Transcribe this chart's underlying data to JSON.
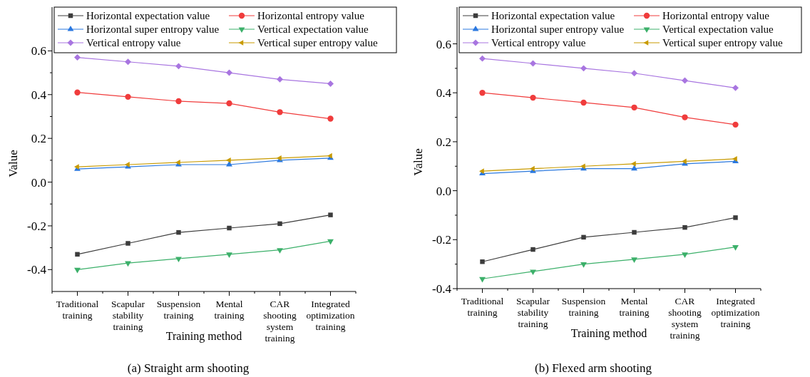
{
  "chart_data": [
    {
      "type": "line",
      "title": "(a) Straight arm shooting",
      "xlabel": "Training method",
      "ylabel": "Value",
      "legend": "top",
      "line_style": "solid",
      "categories": [
        "Traditional training",
        "Scapular stability training",
        "Suspension training",
        "Mental training",
        "CAR shooting system training",
        "Integrated optimization training"
      ],
      "ylim": [
        -0.5,
        0.8
      ],
      "yticks": [
        -0.4,
        {
          "value": -0.3,
          "label": null
        },
        -0.2,
        {
          "value": -0.1,
          "label": null
        },
        {
          "value": 0,
          "label": "0.0"
        },
        {
          "value": 0.1,
          "label": null
        },
        0.2,
        {
          "value": 0.3,
          "label": null
        },
        0.4,
        {
          "value": 0.5,
          "label": null
        },
        0.6
      ],
      "series": [
        {
          "name": "Horizontal expectation value",
          "color": "#3c3c3c",
          "marker": "square",
          "values": [
            -0.33,
            -0.28,
            -0.23,
            -0.21,
            -0.19,
            -0.15
          ]
        },
        {
          "name": "Horizontal entropy value",
          "color": "#f03c3c",
          "marker": "circle",
          "values": [
            0.41,
            0.39,
            0.37,
            0.36,
            0.32,
            0.29
          ]
        },
        {
          "name": "Horizontal super entropy value",
          "color": "#2a78e0",
          "marker": "triangle",
          "values": [
            0.06,
            0.07,
            0.08,
            0.08,
            0.1,
            0.11
          ]
        },
        {
          "name": "Vertical expectation value",
          "color": "#3cb06a",
          "marker": "triangle-down",
          "values": [
            -0.4,
            -0.37,
            -0.35,
            -0.33,
            -0.31,
            -0.27
          ]
        },
        {
          "name": "Vertical entropy value",
          "color": "#a875e0",
          "marker": "diamond",
          "values": [
            0.57,
            0.55,
            0.53,
            0.5,
            0.47,
            0.45
          ]
        },
        {
          "name": "Vertical super entropy value",
          "color": "#c89a00",
          "marker": "triangle-left",
          "values": [
            0.07,
            0.08,
            0.09,
            0.1,
            0.11,
            0.12
          ]
        }
      ]
    },
    {
      "type": "line",
      "title": "(b) Flexed arm shooting",
      "xlabel": "Training method",
      "ylabel": "Value",
      "legend": "top",
      "line_style": "solid",
      "categories": [
        "Traditional training",
        "Scapular stability training",
        "Suspension training",
        "Mental training",
        "CAR shooting system training",
        "Integrated optimization training"
      ],
      "ylim": [
        -0.4,
        0.75
      ],
      "yticks": [
        -0.4,
        {
          "value": -0.3,
          "label": null
        },
        -0.2,
        {
          "value": -0.1,
          "label": null
        },
        {
          "value": 0,
          "label": "0.0"
        },
        {
          "value": 0.1,
          "label": null
        },
        0.2,
        {
          "value": 0.3,
          "label": null
        },
        0.4,
        {
          "value": 0.5,
          "label": null
        },
        0.6
      ],
      "series": [
        {
          "name": "Horizontal expectation value",
          "color": "#3c3c3c",
          "marker": "square",
          "values": [
            -0.29,
            -0.24,
            -0.19,
            -0.17,
            -0.15,
            -0.11
          ]
        },
        {
          "name": "Horizontal entropy value",
          "color": "#f03c3c",
          "marker": "circle",
          "values": [
            0.4,
            0.38,
            0.36,
            0.34,
            0.3,
            0.27
          ]
        },
        {
          "name": "Horizontal super entropy value",
          "color": "#2a78e0",
          "marker": "triangle",
          "values": [
            0.07,
            0.08,
            0.09,
            0.09,
            0.11,
            0.12
          ]
        },
        {
          "name": "Vertical expectation value",
          "color": "#3cb06a",
          "marker": "triangle-down",
          "values": [
            -0.36,
            -0.33,
            -0.3,
            -0.28,
            -0.26,
            -0.23
          ]
        },
        {
          "name": "Vertical entropy value",
          "color": "#a875e0",
          "marker": "diamond",
          "values": [
            0.54,
            0.52,
            0.5,
            0.48,
            0.45,
            0.42
          ]
        },
        {
          "name": "Vertical super entropy value",
          "color": "#c89a00",
          "marker": "triangle-left",
          "values": [
            0.08,
            0.09,
            0.1,
            0.11,
            0.12,
            0.13
          ]
        }
      ]
    }
  ]
}
